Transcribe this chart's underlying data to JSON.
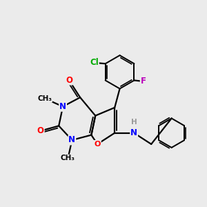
{
  "background_color": "#ebebeb",
  "atom_colors": {
    "N": "#0000ff",
    "O": "#ff0000",
    "Cl": "#00aa00",
    "F": "#bb00bb",
    "H": "#999999",
    "C": "#000000"
  },
  "bond_color": "#000000",
  "bond_width": 1.6,
  "font_size_atom": 8.5
}
